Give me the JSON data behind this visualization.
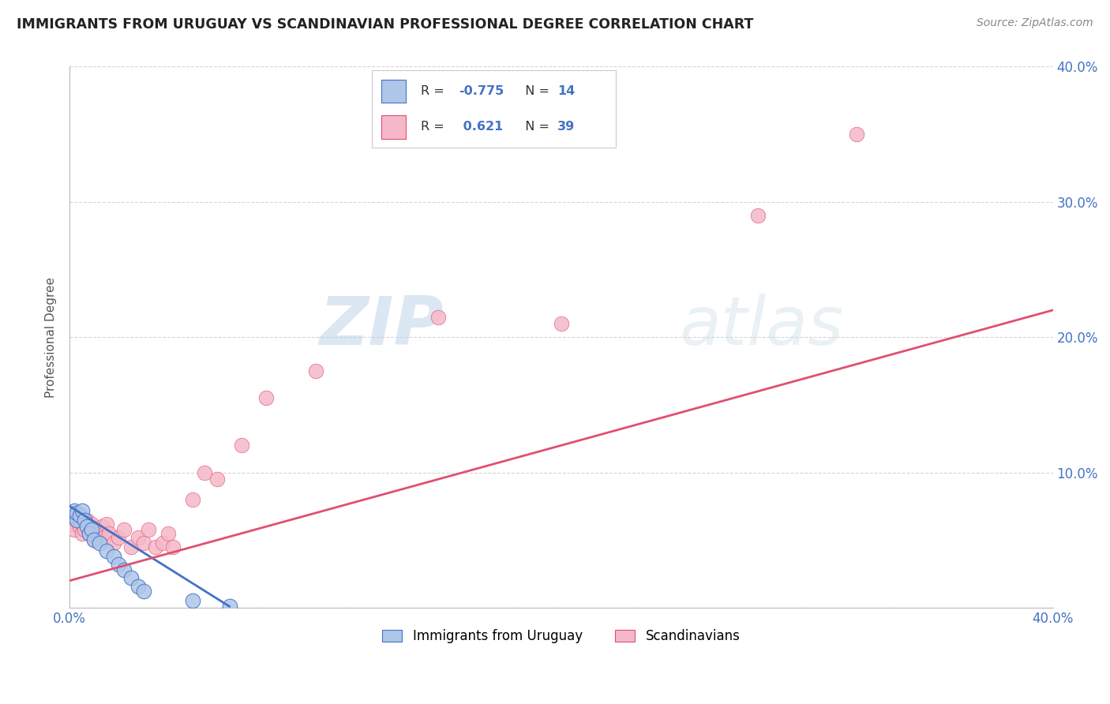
{
  "title": "IMMIGRANTS FROM URUGUAY VS SCANDINAVIAN PROFESSIONAL DEGREE CORRELATION CHART",
  "source": "Source: ZipAtlas.com",
  "ylabel": "Professional Degree",
  "xlim": [
    0.0,
    0.4
  ],
  "ylim": [
    0.0,
    0.4
  ],
  "x_ticks": [
    0.0,
    0.1,
    0.2,
    0.3,
    0.4
  ],
  "y_ticks": [
    0.0,
    0.1,
    0.2,
    0.3,
    0.4
  ],
  "x_tick_labels": [
    "0.0%",
    "",
    "",
    "",
    "40.0%"
  ],
  "y_tick_labels_right": [
    "",
    "10.0%",
    "20.0%",
    "30.0%",
    "40.0%"
  ],
  "color_uruguay": "#aec6e8",
  "color_scandinavian": "#f5b8c8",
  "color_line_uruguay": "#4472c4",
  "color_line_scandinavian": "#e05070",
  "color_title": "#222222",
  "color_axis": "#4472c4",
  "color_source": "#888888",
  "background_color": "#ffffff",
  "grid_color": "#cccccc",
  "uruguay_x": [
    0.001,
    0.002,
    0.003,
    0.003,
    0.004,
    0.005,
    0.006,
    0.007,
    0.008,
    0.009,
    0.01,
    0.012,
    0.015,
    0.018,
    0.02,
    0.022,
    0.025,
    0.028,
    0.03,
    0.05,
    0.065
  ],
  "uruguay_y": [
    0.068,
    0.072,
    0.065,
    0.07,
    0.068,
    0.072,
    0.065,
    0.06,
    0.055,
    0.058,
    0.05,
    0.048,
    0.042,
    0.038,
    0.032,
    0.028,
    0.022,
    0.016,
    0.012,
    0.005,
    0.001
  ],
  "scandinavian_x": [
    0.001,
    0.002,
    0.003,
    0.004,
    0.005,
    0.005,
    0.006,
    0.007,
    0.008,
    0.009,
    0.01,
    0.01,
    0.011,
    0.012,
    0.013,
    0.014,
    0.015,
    0.016,
    0.018,
    0.02,
    0.022,
    0.025,
    0.028,
    0.03,
    0.032,
    0.035,
    0.038,
    0.04,
    0.042,
    0.05,
    0.055,
    0.06,
    0.07,
    0.08,
    0.1,
    0.15,
    0.2,
    0.28,
    0.32
  ],
  "scandinavian_y": [
    0.062,
    0.058,
    0.065,
    0.06,
    0.062,
    0.055,
    0.058,
    0.065,
    0.055,
    0.062,
    0.05,
    0.058,
    0.052,
    0.055,
    0.06,
    0.052,
    0.062,
    0.055,
    0.048,
    0.052,
    0.058,
    0.045,
    0.052,
    0.048,
    0.058,
    0.045,
    0.048,
    0.055,
    0.045,
    0.08,
    0.1,
    0.095,
    0.12,
    0.155,
    0.175,
    0.215,
    0.21,
    0.29,
    0.35
  ],
  "scan_line_x": [
    0.0,
    0.4
  ],
  "scan_line_y": [
    0.02,
    0.22
  ],
  "uru_line_x": [
    0.0,
    0.065
  ],
  "uru_line_y": [
    0.075,
    0.001
  ]
}
